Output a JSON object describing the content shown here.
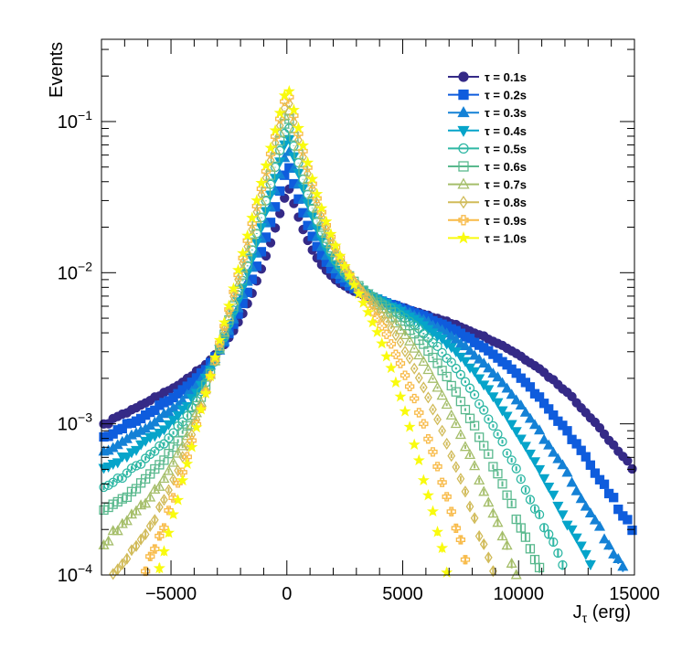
{
  "chart_data": {
    "type": "scatter",
    "title": "",
    "xlabel_main": "J",
    "xlabel_sub": "τ",
    "xlabel_unit": " (erg)",
    "ylabel": "Events",
    "xlim": [
      -8000,
      15000
    ],
    "ylim": [
      0.0001,
      0.35
    ],
    "yscale": "log",
    "grid": false,
    "legend_position": "top-right",
    "x_tick_values": [
      -5000,
      0,
      5000,
      10000,
      15000
    ],
    "x_ticks": [
      "−5000",
      "0",
      "5000",
      "10000",
      "15000"
    ],
    "y_ticks": [
      {
        "value": 0.1,
        "base": "10",
        "exp": "−1"
      },
      {
        "value": 0.01,
        "base": "10",
        "exp": "−2"
      },
      {
        "value": 0.001,
        "base": "10",
        "exp": "−3"
      },
      {
        "value": 0.0001,
        "base": "10",
        "exp": "−4"
      }
    ],
    "series": [
      {
        "name": "τ = 0.1s",
        "tau": 0.1,
        "color": "#352a87",
        "marker": "circle",
        "filled": true
      },
      {
        "name": "τ = 0.2s",
        "tau": 0.2,
        "color": "#0f5cdd",
        "marker": "square",
        "filled": true
      },
      {
        "name": "τ = 0.3s",
        "tau": 0.3,
        "color": "#1481d6",
        "marker": "triangle-up",
        "filled": true
      },
      {
        "name": "τ = 0.4s",
        "tau": 0.4,
        "color": "#06a4ca",
        "marker": "triangle-down",
        "filled": true
      },
      {
        "name": "τ = 0.5s",
        "tau": 0.5,
        "color": "#2eb7a4",
        "marker": "circle",
        "filled": false
      },
      {
        "name": "τ = 0.6s",
        "tau": 0.6,
        "color": "#5ab98e",
        "marker": "square",
        "filled": false
      },
      {
        "name": "τ = 0.7s",
        "tau": 0.7,
        "color": "#a5be6a",
        "marker": "triangle-up",
        "filled": false
      },
      {
        "name": "τ = 0.8s",
        "tau": 0.8,
        "color": "#d1bb59",
        "marker": "diamond",
        "filled": false
      },
      {
        "name": "τ = 0.9s",
        "tau": 0.9,
        "color": "#f8ba47",
        "marker": "cross",
        "filled": false
      },
      {
        "name": "τ = 1.0s",
        "tau": 1.0,
        "color": "#f9fb0e",
        "marker": "star",
        "filled": true
      }
    ]
  }
}
